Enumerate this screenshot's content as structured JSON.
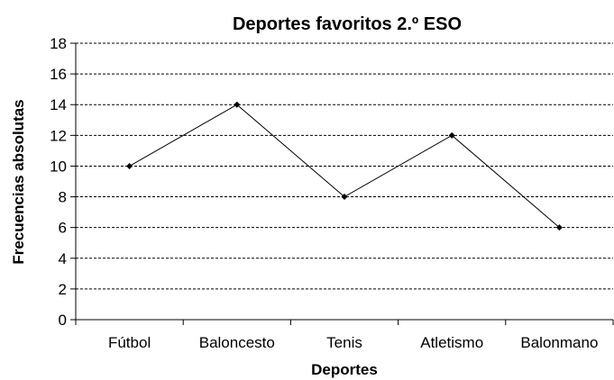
{
  "chart_data": {
    "type": "line",
    "title": "Deportes favoritos 2.º ESO",
    "xlabel": "Deportes",
    "ylabel": "Frecuencias absolutas",
    "categories": [
      "Fútbol",
      "Baloncesto",
      "Tenis",
      "Atletismo",
      "Balonmano"
    ],
    "series": [
      {
        "values": [
          10,
          14,
          8,
          12,
          6
        ]
      }
    ],
    "ylim": [
      0,
      18
    ],
    "ytick_step": 2,
    "grid": true,
    "legend": "none",
    "colors": {
      "line": "#000000",
      "grid": "#000000"
    }
  }
}
